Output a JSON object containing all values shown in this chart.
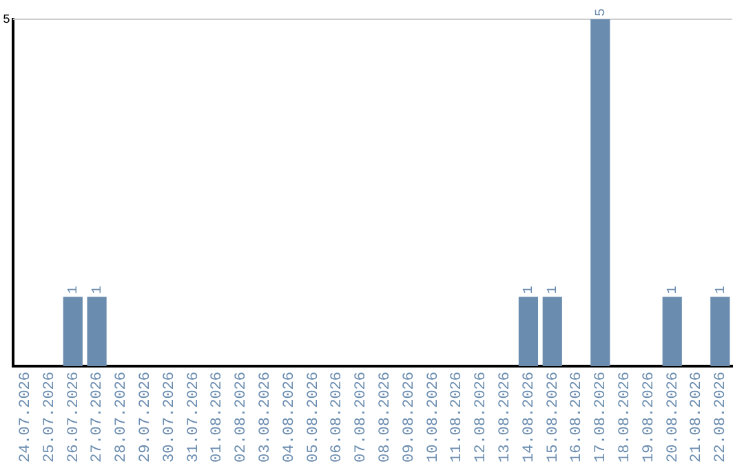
{
  "chart_data": {
    "type": "bar",
    "categories": [
      "24.07.2026",
      "25.07.2026",
      "26.07.2026",
      "27.07.2026",
      "28.07.2026",
      "29.07.2026",
      "30.07.2026",
      "31.07.2026",
      "01.08.2026",
      "02.08.2026",
      "03.08.2026",
      "04.08.2026",
      "05.08.2026",
      "06.08.2026",
      "07.08.2026",
      "08.08.2026",
      "09.08.2026",
      "10.08.2026",
      "11.08.2026",
      "12.08.2026",
      "13.08.2026",
      "14.08.2026",
      "15.08.2026",
      "16.08.2026",
      "17.08.2026",
      "18.08.2026",
      "19.08.2026",
      "20.08.2026",
      "21.08.2026",
      "22.08.2026"
    ],
    "values": [
      0,
      0,
      1,
      1,
      0,
      0,
      0,
      0,
      0,
      0,
      0,
      0,
      0,
      0,
      0,
      0,
      0,
      0,
      0,
      0,
      0,
      1,
      1,
      0,
      5,
      0,
      0,
      1,
      0,
      1
    ],
    "value_labels": [
      null,
      null,
      "1",
      "1",
      null,
      null,
      null,
      null,
      null,
      null,
      null,
      null,
      null,
      null,
      null,
      null,
      null,
      null,
      null,
      null,
      null,
      "1",
      "1",
      null,
      "5",
      null,
      null,
      "1",
      null,
      "1"
    ],
    "color": "#6a8caf",
    "ylim": [
      0,
      5
    ],
    "yticks": [
      5
    ],
    "ref_lines": [
      {
        "axis": "y",
        "value": 5,
        "color": "#cccccc"
      }
    ],
    "legend": false
  }
}
